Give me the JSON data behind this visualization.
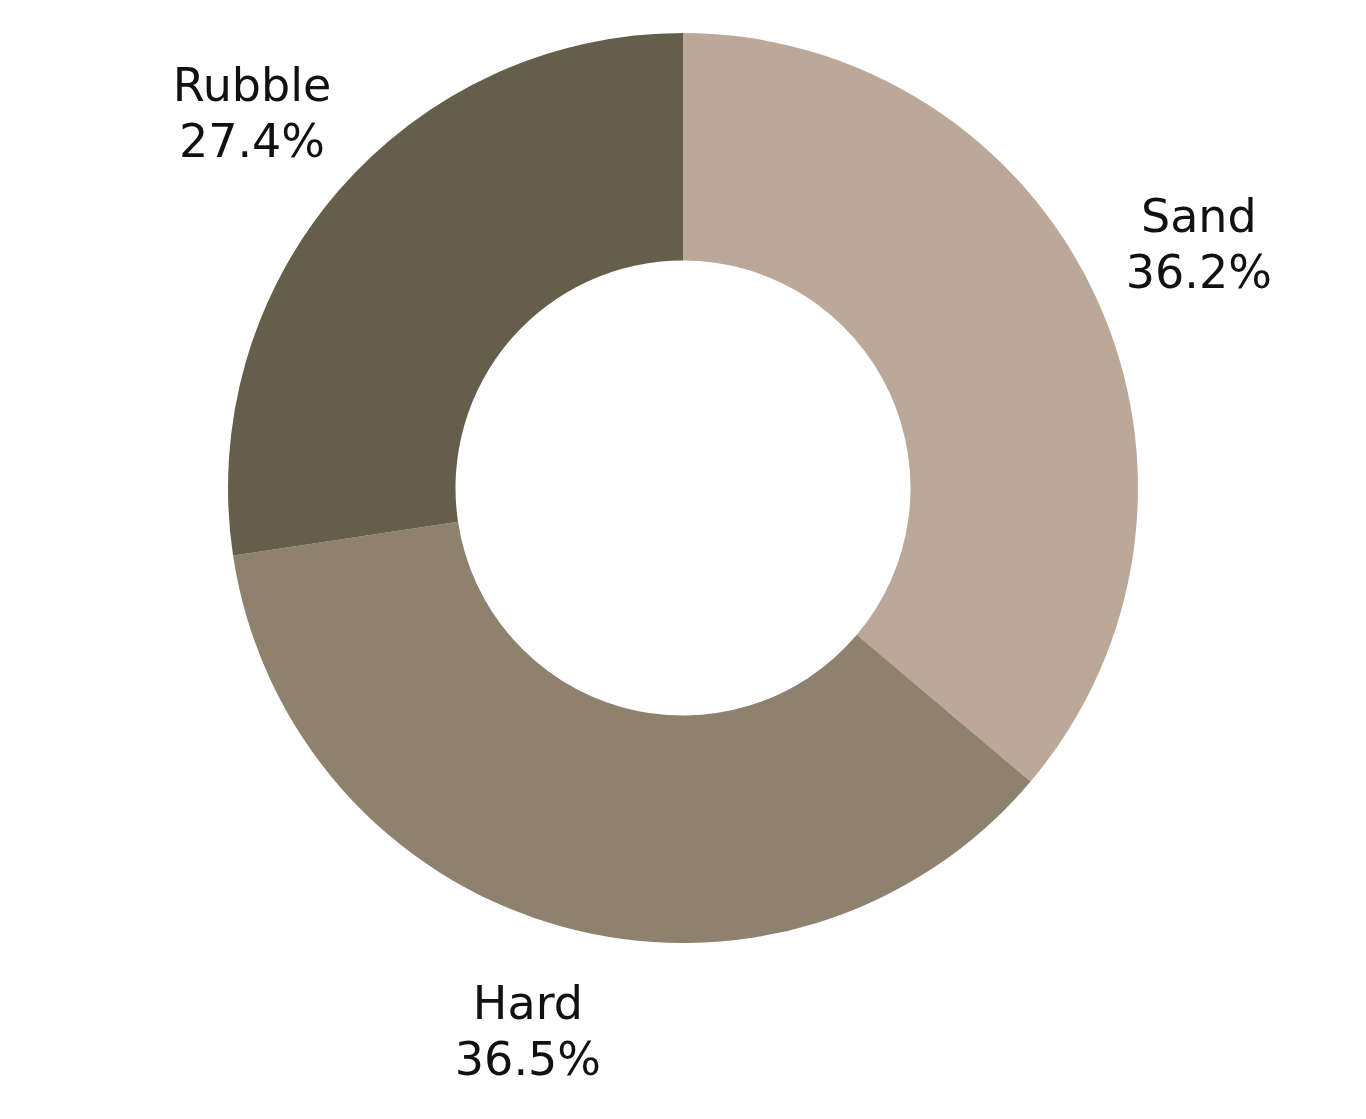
{
  "chart_data": {
    "type": "donut",
    "categories": [
      "Sand",
      "Hard",
      "Rubble"
    ],
    "values": [
      36.2,
      36.5,
      27.4
    ],
    "value_labels": [
      "36.2%",
      "36.5%",
      "27.4%"
    ],
    "colors": [
      "#bba898",
      "#8e816d",
      "#645e4a"
    ],
    "legend": false
  }
}
